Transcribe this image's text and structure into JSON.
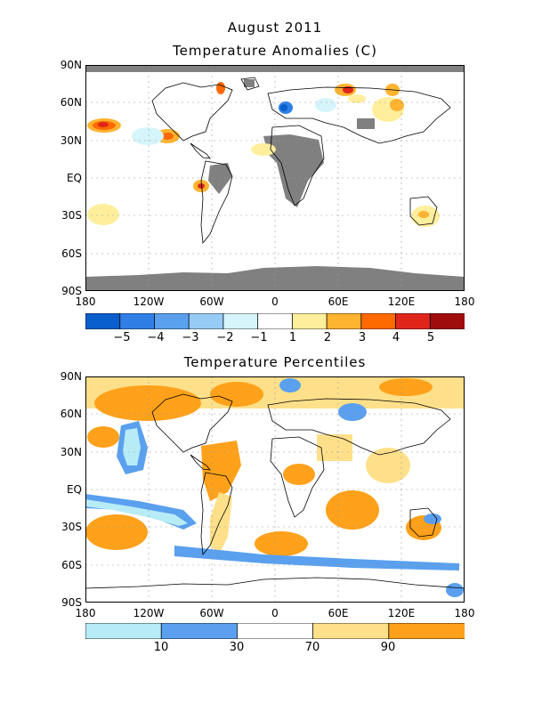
{
  "header": {
    "line1": "August 2011",
    "line2": "Temperature Anomalies (C)"
  },
  "panel2": {
    "title": "Temperature Percentiles"
  },
  "lat_labels": [
    "90N",
    "60N",
    "30N",
    "EQ",
    "30S",
    "60S",
    "90S"
  ],
  "lon_labels": [
    "180",
    "120W",
    "60W",
    "0",
    "60E",
    "120E",
    "180"
  ],
  "anomaly_colorbar": {
    "colors": [
      "#0a5fcc",
      "#2f7fe6",
      "#5aa0ee",
      "#96cbf5",
      "#d6f5fb",
      "#ffffff",
      "#ffef9d",
      "#ffb330",
      "#ff6a00",
      "#e0261b",
      "#a00d0d"
    ],
    "labels": [
      "−5",
      "−4",
      "−3",
      "−2",
      "−1",
      "1",
      "2",
      "3",
      "4",
      "5"
    ]
  },
  "percentile_colorbar": {
    "colors": [
      "#b7ecf7",
      "#5aa0ee",
      "#ffffff",
      "#ffe08a",
      "#ffa11a"
    ],
    "labels": [
      "10",
      "30",
      "70",
      "90"
    ]
  },
  "colors": {
    "missing": "#808080",
    "land_outline": "#000000",
    "grid": "#999999"
  }
}
